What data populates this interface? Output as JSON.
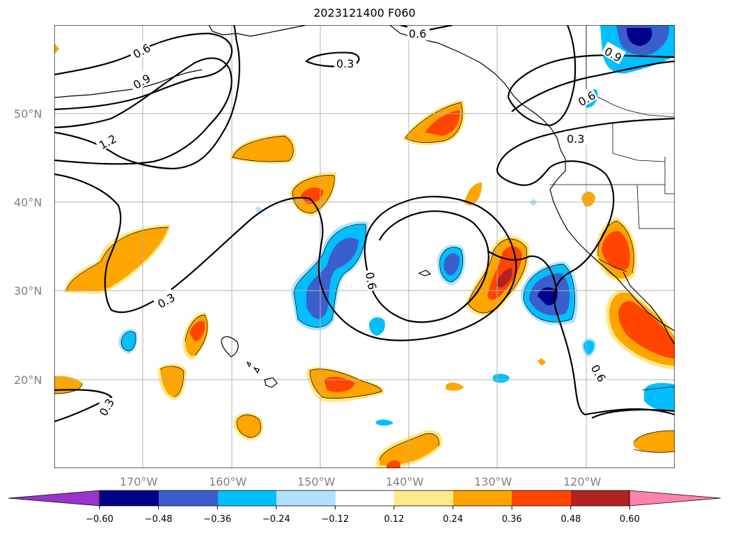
{
  "title": "2023121400 F060",
  "latitude_labels": [
    "50°N",
    "40°N",
    "30°N",
    "20°N"
  ],
  "longitude_labels": [
    "170°W",
    "160°W",
    "150°W",
    "140°W",
    "130°W",
    "120°W"
  ],
  "contour_labels": [
    "0.6",
    "0.9",
    "1.2",
    "0.3",
    "0.6",
    "0.3",
    "0.6",
    "0.3",
    "0.6",
    "0.9",
    "0.6",
    "0.3",
    "0.6",
    "0.3"
  ],
  "colorbar": {
    "ticks": [
      "−0.60",
      "−0.48",
      "−0.36",
      "−0.24",
      "−0.12",
      "0.12",
      "0.24",
      "0.36",
      "0.48",
      "0.60"
    ],
    "colors": [
      "#9933cc",
      "#00008b",
      "#3a5fcd",
      "#00bfff",
      "#b0e2ff",
      "#ffffff",
      "#ffe98a",
      "#ffa500",
      "#ff4500",
      "#b22222",
      "#ff82ab"
    ]
  },
  "map": {
    "extent": {
      "lon_min": -180,
      "lon_max": -110,
      "lat_min": 10,
      "lat_max": 60
    },
    "gridlines": true
  }
}
